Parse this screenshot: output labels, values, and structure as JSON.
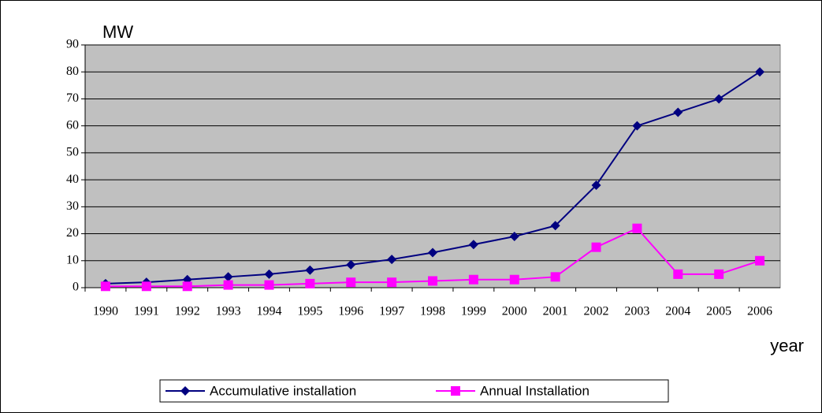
{
  "chart_data": {
    "type": "line",
    "y_label": "MW",
    "x_label": "year",
    "categories": [
      "1990",
      "1991",
      "1992",
      "1993",
      "1994",
      "1995",
      "1996",
      "1997",
      "1998",
      "1999",
      "2000",
      "2001",
      "2002",
      "2003",
      "2004",
      "2005",
      "2006"
    ],
    "series": [
      {
        "name": "Accumulative installation",
        "color": "#000080",
        "marker": "diamond",
        "values": [
          1.5,
          2,
          3,
          4,
          5,
          6.5,
          8.5,
          10.5,
          13,
          16,
          19,
          23,
          38,
          60,
          65,
          70,
          80
        ]
      },
      {
        "name": "Annual Installation",
        "color": "#ff00ff",
        "marker": "square",
        "values": [
          0.5,
          0.5,
          0.5,
          1,
          1,
          1.5,
          2,
          2,
          2.5,
          3,
          3,
          4,
          15,
          22,
          5,
          5,
          10
        ]
      }
    ],
    "ylim": [
      0,
      90
    ],
    "yticks": [
      0,
      10,
      20,
      30,
      40,
      50,
      60,
      70,
      80,
      90
    ],
    "grid": true,
    "legend": "bottom"
  }
}
